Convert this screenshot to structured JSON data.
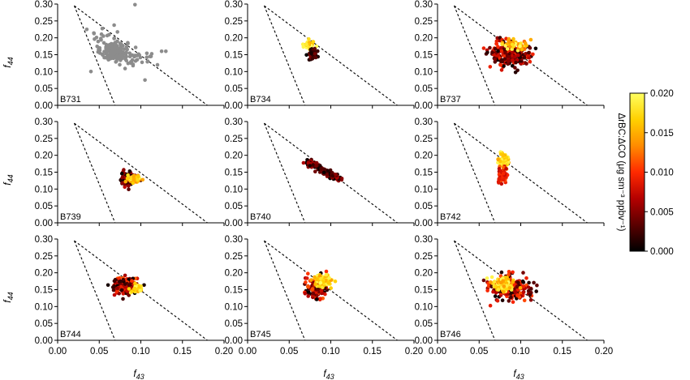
{
  "chart_data": {
    "type": "scatter",
    "layout": "3x3 small multiples",
    "xlabel": "f43",
    "ylabel": "f44",
    "xlim": [
      0,
      0.2
    ],
    "ylim": [
      0,
      0.3
    ],
    "x_ticks": [
      "0.00",
      "0.05",
      "0.10",
      "0.15",
      "0.20"
    ],
    "y_ticks": [
      "0.00",
      "0.05",
      "0.10",
      "0.15",
      "0.20",
      "0.25",
      "0.30"
    ],
    "reference_lines": [
      {
        "x": [
          0.02,
          0.069
        ],
        "y": [
          0.295,
          0.0
        ],
        "style": "dashed"
      },
      {
        "x": [
          0.02,
          0.18
        ],
        "y": [
          0.295,
          0.0
        ],
        "style": "dashed"
      }
    ],
    "colorbar": {
      "label": "ΔrBC:ΔCO (μg sm⁻³ ppbv⁻¹)",
      "range": [
        0.0,
        0.02
      ],
      "ticks": [
        "0.000",
        "0.005",
        "0.010",
        "0.015",
        "0.020"
      ],
      "colormap": [
        "#000000",
        "#5a0000",
        "#b40000",
        "#ff2a00",
        "#ff8c00",
        "#ffd000",
        "#ffff60"
      ]
    },
    "panels": [
      {
        "label": "B731",
        "uncolored": true,
        "marker_color": "#8c8c8c",
        "clusters": [
          {
            "cx": 0.068,
            "cy": 0.16,
            "sx": 0.008,
            "sy": 0.015,
            "n": 150
          },
          {
            "cx": 0.095,
            "cy": 0.14,
            "sx": 0.012,
            "sy": 0.012,
            "n": 30
          },
          {
            "cx": 0.055,
            "cy": 0.205,
            "sx": 0.01,
            "sy": 0.025,
            "n": 18
          }
        ],
        "outliers": [
          [
            0.093,
            0.298
          ],
          [
            0.035,
            0.225
          ],
          [
            0.13,
            0.16
          ],
          [
            0.125,
            0.16
          ],
          [
            0.105,
            0.075
          ],
          [
            0.04,
            0.1
          ],
          [
            0.12,
            0.12
          ]
        ]
      },
      {
        "label": "B734",
        "clusters": [
          {
            "cx": 0.074,
            "cy": 0.18,
            "sx": 0.003,
            "sy": 0.006,
            "n": 40,
            "cmin": 0.014,
            "cmax": 0.02
          },
          {
            "cx": 0.078,
            "cy": 0.152,
            "sx": 0.003,
            "sy": 0.008,
            "n": 40,
            "cmin": 0.0,
            "cmax": 0.005
          }
        ]
      },
      {
        "label": "B737",
        "clusters": [
          {
            "cx": 0.088,
            "cy": 0.15,
            "sx": 0.012,
            "sy": 0.018,
            "n": 260,
            "cmin": 0.0,
            "cmax": 0.01
          },
          {
            "cx": 0.093,
            "cy": 0.178,
            "sx": 0.01,
            "sy": 0.008,
            "n": 45,
            "cmin": 0.012,
            "cmax": 0.02
          }
        ]
      },
      {
        "label": "B739",
        "clusters": [
          {
            "cx": 0.084,
            "cy": 0.13,
            "sx": 0.004,
            "sy": 0.01,
            "n": 110,
            "cmin": 0.0,
            "cmax": 0.008
          },
          {
            "cx": 0.091,
            "cy": 0.13,
            "sx": 0.004,
            "sy": 0.006,
            "n": 60,
            "cmin": 0.013,
            "cmax": 0.02
          }
        ]
      },
      {
        "label": "B740",
        "line": {
          "x": [
            0.072,
            0.11
          ],
          "y": [
            0.18,
            0.13
          ],
          "n": 140,
          "sperp": 0.004,
          "cmin": 0.0,
          "cmax": 0.007
        }
      },
      {
        "label": "B742",
        "clusters": [
          {
            "cx": 0.08,
            "cy": 0.185,
            "sx": 0.003,
            "sy": 0.012,
            "n": 70,
            "cmin": 0.014,
            "cmax": 0.02
          },
          {
            "cx": 0.078,
            "cy": 0.14,
            "sx": 0.003,
            "sy": 0.012,
            "n": 55,
            "cmin": 0.007,
            "cmax": 0.012
          }
        ]
      },
      {
        "label": "B744",
        "clusters": [
          {
            "cx": 0.082,
            "cy": 0.162,
            "sx": 0.007,
            "sy": 0.013,
            "n": 150,
            "cmin": 0.0,
            "cmax": 0.012
          },
          {
            "cx": 0.095,
            "cy": 0.152,
            "sx": 0.004,
            "sy": 0.007,
            "n": 30,
            "cmin": 0.015,
            "cmax": 0.02
          }
        ]
      },
      {
        "label": "B745",
        "clusters": [
          {
            "cx": 0.083,
            "cy": 0.155,
            "sx": 0.006,
            "sy": 0.016,
            "n": 170,
            "cmin": 0.0,
            "cmax": 0.012
          },
          {
            "cx": 0.09,
            "cy": 0.175,
            "sx": 0.006,
            "sy": 0.01,
            "n": 80,
            "cmin": 0.014,
            "cmax": 0.02
          }
        ]
      },
      {
        "label": "B746",
        "clusters": [
          {
            "cx": 0.088,
            "cy": 0.155,
            "sx": 0.012,
            "sy": 0.017,
            "n": 220,
            "cmin": 0.0,
            "cmax": 0.012
          },
          {
            "cx": 0.08,
            "cy": 0.165,
            "sx": 0.007,
            "sy": 0.01,
            "n": 90,
            "cmin": 0.014,
            "cmax": 0.02
          }
        ]
      }
    ]
  }
}
